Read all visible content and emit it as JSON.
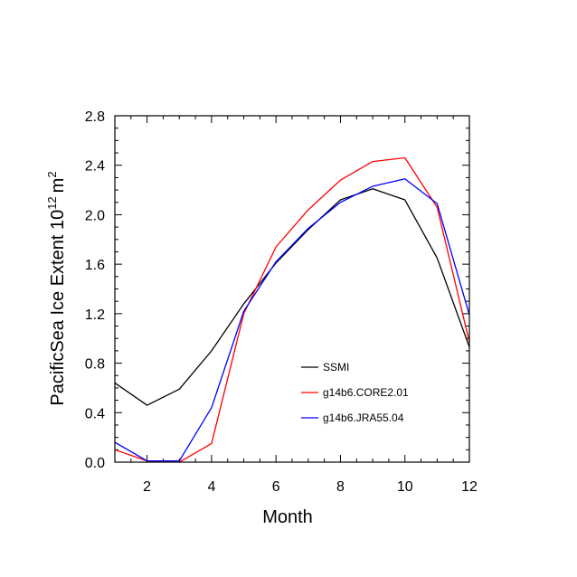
{
  "chart_data": {
    "type": "line",
    "title": "",
    "xlabel": "Month",
    "ylabel": {
      "main": "PacificSea Ice Extent 10",
      "exponent": "12",
      "unit": "m",
      "unit_exponent": "2"
    },
    "xlim": [
      1,
      12
    ],
    "ylim": [
      0.0,
      2.8
    ],
    "x_ticks": [
      2,
      4,
      6,
      8,
      10,
      12
    ],
    "x_tick_labels": [
      "2",
      "4",
      "6",
      "8",
      "10",
      "12"
    ],
    "y_ticks": [
      0.0,
      0.4,
      0.8,
      1.2,
      1.6,
      2.0,
      2.4,
      2.8
    ],
    "y_tick_labels": [
      "0.0",
      "0.4",
      "0.8",
      "1.2",
      "1.6",
      "2.0",
      "2.4",
      "2.8"
    ],
    "x": [
      1,
      2,
      3,
      4,
      5,
      6,
      7,
      8,
      9,
      10,
      11,
      12
    ],
    "series": [
      {
        "name": "SSMI",
        "color": "#000000",
        "values": [
          0.64,
          0.46,
          0.59,
          0.9,
          1.28,
          1.61,
          1.88,
          2.12,
          2.21,
          2.12,
          1.65,
          0.93
        ]
      },
      {
        "name": "g14b6.CORE2.01",
        "color": "#ff0000",
        "values": [
          0.1,
          0.01,
          0.0,
          0.15,
          1.2,
          1.74,
          2.04,
          2.28,
          2.43,
          2.46,
          2.06,
          0.97
        ]
      },
      {
        "name": "g14b6.JRA55.04",
        "color": "#0000ff",
        "values": [
          0.16,
          0.01,
          0.01,
          0.44,
          1.22,
          1.62,
          1.89,
          2.1,
          2.23,
          2.29,
          2.09,
          1.19
        ]
      }
    ],
    "legend_position": "lower-right"
  }
}
